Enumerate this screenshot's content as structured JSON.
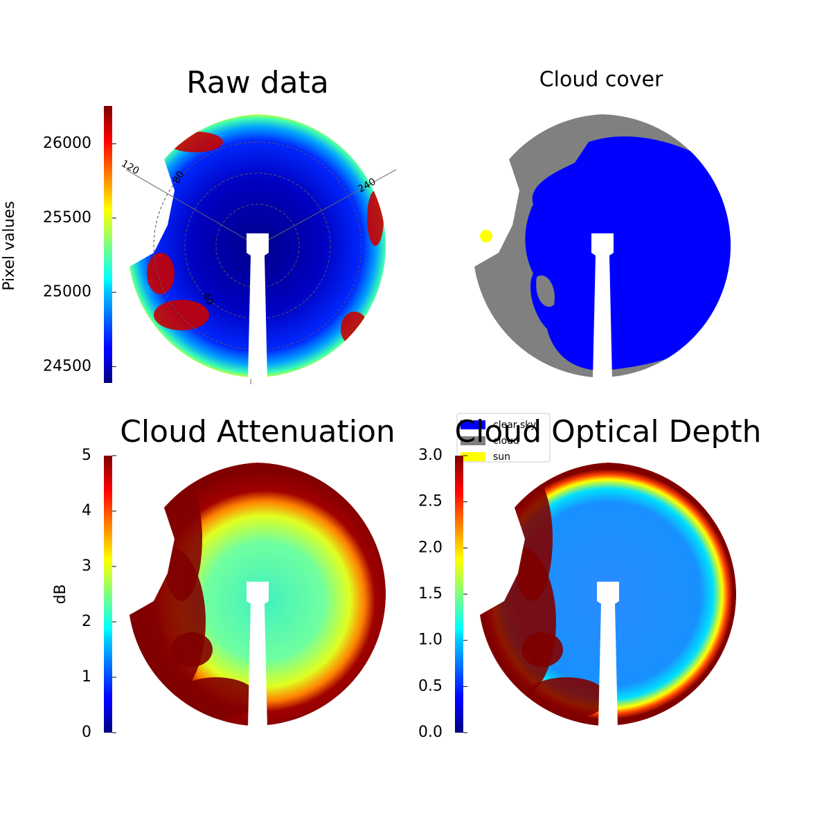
{
  "chart_data": [
    {
      "type": "image",
      "title": "Raw data",
      "colormap": "jet",
      "colorbar": {
        "label": "Pixel values",
        "lim": [
          24390,
          26255
        ],
        "ticks": [
          24500,
          25000,
          25500,
          26000
        ]
      },
      "polar_labels": [
        "120",
        "240",
        "80",
        "40"
      ]
    },
    {
      "type": "image",
      "title": "Cloud cover",
      "legend": {
        "entries": [
          {
            "name": "clear sky",
            "color": "#0000ff"
          },
          {
            "name": "cloud",
            "color": "#808080"
          },
          {
            "name": "sun",
            "color": "#ffff00"
          }
        ]
      }
    },
    {
      "type": "image",
      "title": "Cloud Attenuation",
      "colormap": "jet",
      "colorbar": {
        "label": "dB",
        "lim": [
          0,
          5
        ],
        "ticks": [
          0,
          1,
          2,
          3,
          4,
          5
        ]
      }
    },
    {
      "type": "image",
      "title": "Cloud Optical Depth",
      "colormap": "jet",
      "colorbar": {
        "lim": [
          0,
          3
        ],
        "ticks": [
          {
            "value": 0,
            "label": "0.0"
          },
          0.5,
          {
            "value": 1,
            "label": "1.0"
          },
          1.5,
          {
            "value": 2,
            "label": "2.0"
          },
          2.5,
          {
            "value": 3,
            "label": "3.0"
          }
        ]
      }
    }
  ]
}
